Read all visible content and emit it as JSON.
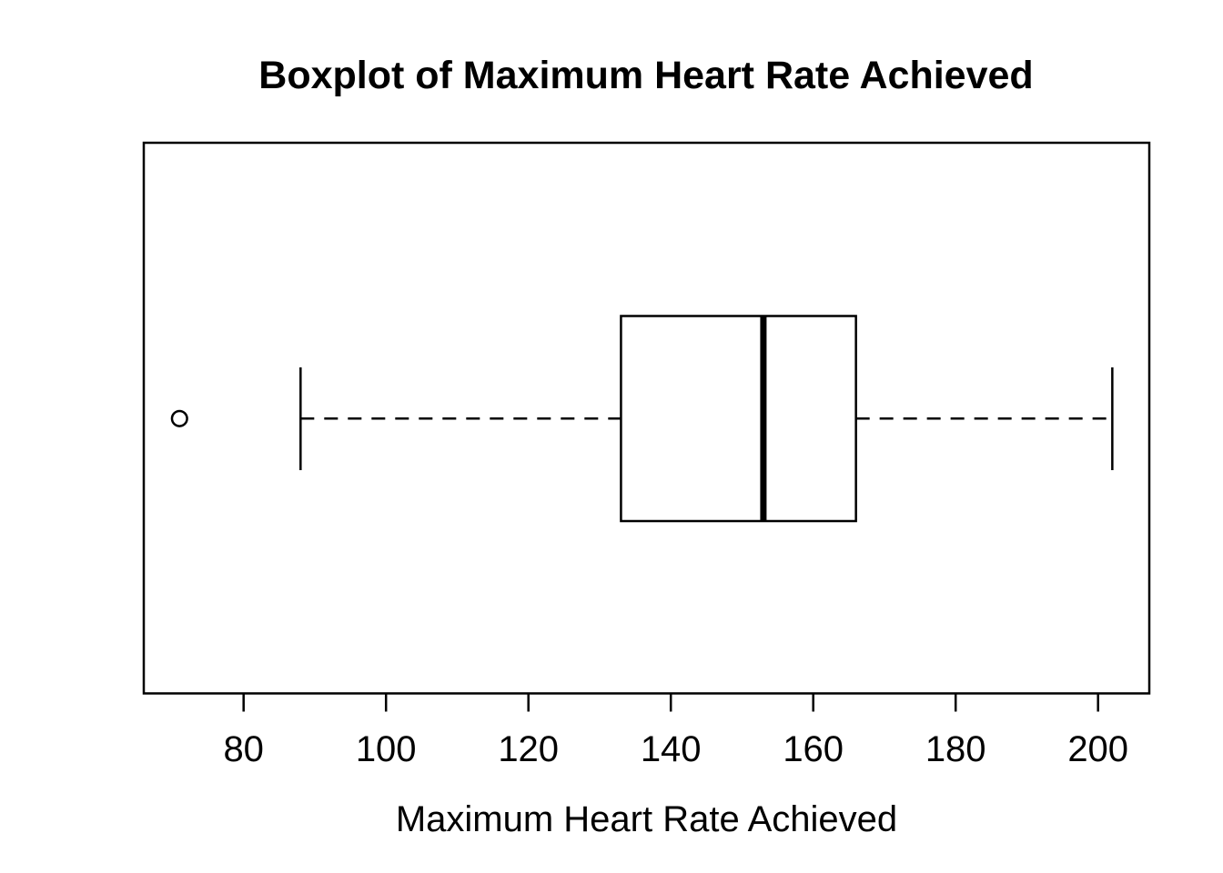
{
  "chart_data": {
    "type": "boxplot",
    "orientation": "horizontal",
    "title": "Boxplot of Maximum Heart Rate Achieved",
    "xlabel": "Maximum Heart Rate Achieved",
    "ylabel": "",
    "x_ticks": [
      80,
      100,
      120,
      140,
      160,
      180,
      200
    ],
    "xlim": [
      65.8,
      207.2
    ],
    "grid": false,
    "legend": false,
    "series": [
      {
        "name": "Maximum Heart Rate Achieved",
        "whisker_low": 88,
        "q1": 133,
        "median": 153,
        "q3": 166,
        "whisker_high": 202,
        "outliers": [
          71
        ]
      }
    ],
    "colors": {
      "stroke": "#000000",
      "background": "#ffffff",
      "box_fill": "#ffffff"
    }
  }
}
